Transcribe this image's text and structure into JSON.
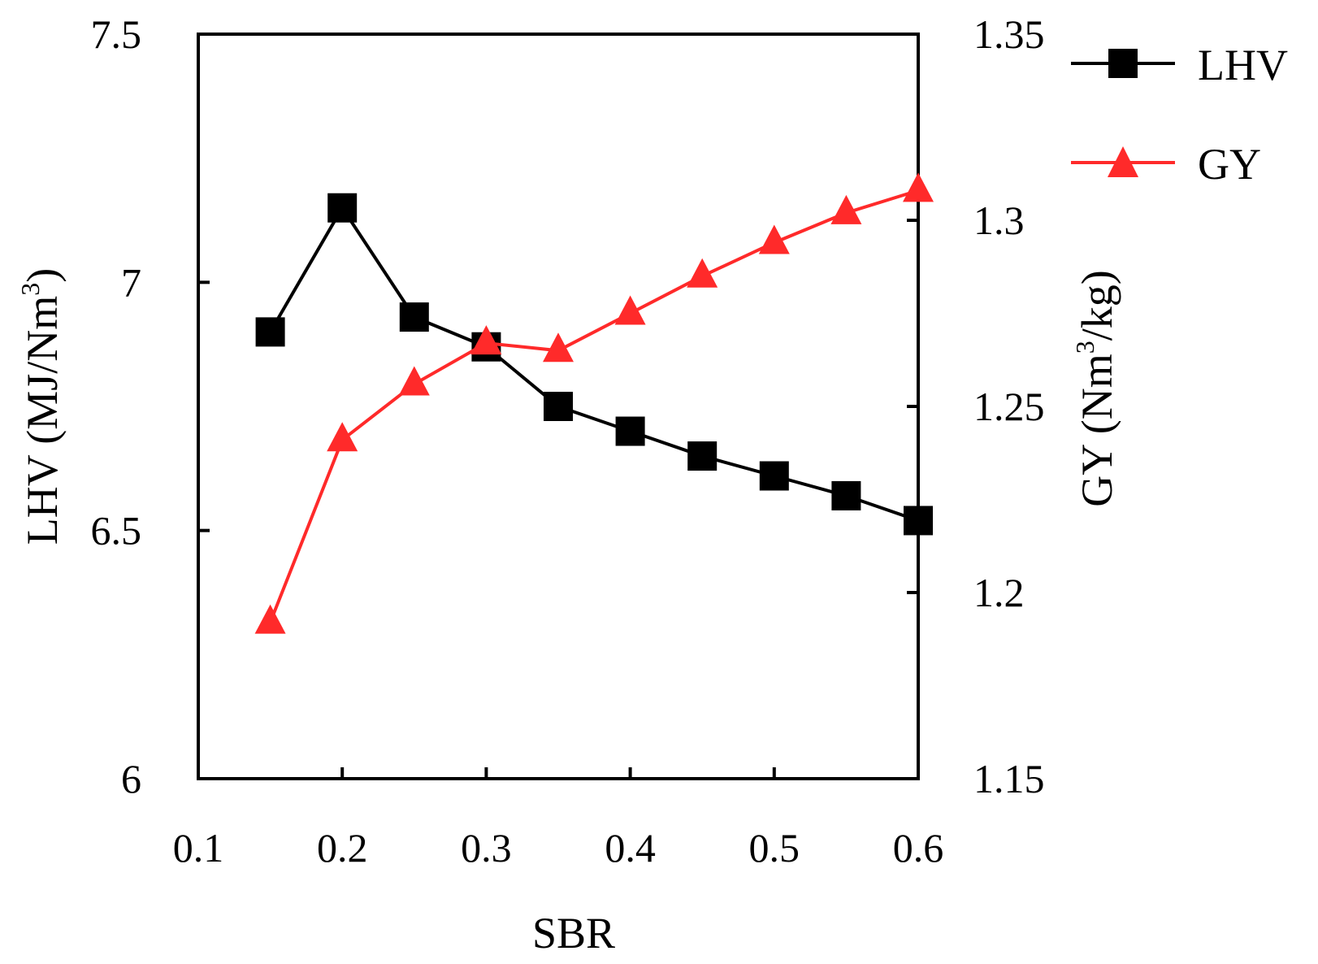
{
  "chart_data": {
    "type": "line",
    "x": [
      0.15,
      0.2,
      0.25,
      0.3,
      0.35,
      0.4,
      0.45,
      0.5,
      0.55,
      0.6
    ],
    "xlabel": "SBR",
    "xlim": [
      0.1,
      0.6
    ],
    "xticks": [
      "0.1",
      "0.2",
      "0.3",
      "0.4",
      "0.5",
      "0.6"
    ],
    "y_left": {
      "label_main": "LHV (MJ/Nm",
      "label_sup": "3",
      "label_end": ")",
      "ylim": [
        6,
        7.5
      ],
      "ticks": [
        "6",
        "6.5",
        "7",
        "7.5"
      ]
    },
    "y_right": {
      "label_main": "GY (Nm",
      "label_sup": "3",
      "label_end": "/kg)",
      "ylim": [
        1.15,
        1.35
      ],
      "ticks": [
        "1.15",
        "1.2",
        "1.25",
        "1.3",
        "1.35"
      ]
    },
    "series": [
      {
        "name": "LHV",
        "axis": "left",
        "marker": "square",
        "color": "#000000",
        "values": [
          6.9,
          7.15,
          6.93,
          6.87,
          6.75,
          6.7,
          6.65,
          6.61,
          6.57,
          6.52
        ]
      },
      {
        "name": "GY",
        "axis": "right",
        "marker": "triangle",
        "color": "#ff2a2a",
        "values": [
          1.192,
          1.241,
          1.256,
          1.267,
          1.265,
          1.275,
          1.285,
          1.294,
          1.302,
          1.308
        ]
      }
    ],
    "legend_position": "top-right"
  }
}
